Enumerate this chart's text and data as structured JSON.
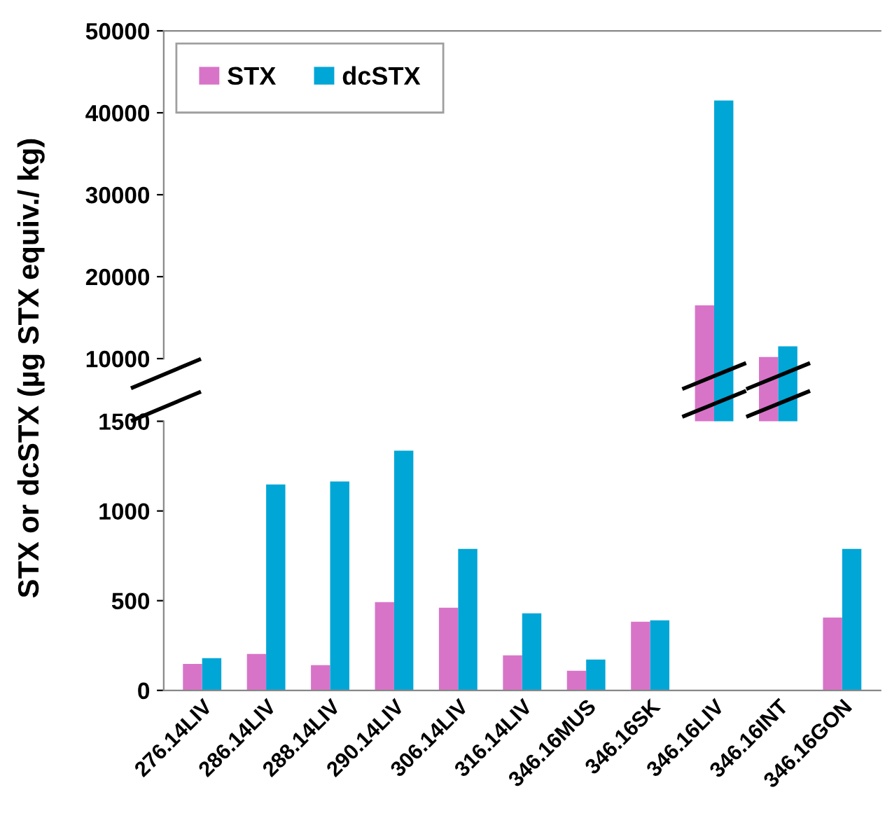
{
  "chart_data": [
    {
      "type": "bar",
      "ylabel": "STX or dcSTX (µg STX equiv./ kg)",
      "series": [
        {
          "name": "STX",
          "color": "#d874c8",
          "values": [
            null,
            null,
            null,
            null,
            null,
            null,
            null,
            null,
            16500,
            10200,
            null
          ]
        },
        {
          "name": "dcSTX",
          "color": "#00a6d6",
          "values": [
            null,
            null,
            null,
            null,
            null,
            null,
            null,
            null,
            41500,
            11500,
            null
          ]
        }
      ],
      "ylim": [
        10000,
        50000
      ],
      "yticks": [
        10000,
        20000,
        30000,
        40000,
        50000
      ],
      "tick_labels": "y",
      "legend": "top left",
      "grid": false
    },
    {
      "type": "bar",
      "categories": [
        "276.14LIV",
        "286.14LIV",
        "288.14LIV",
        "290.14LIV",
        "306.14LIV",
        "316.14LIV",
        "346.16MUS",
        "346.16SK",
        "346.16LIV",
        "346.16INT",
        "346.16GON"
      ],
      "series": [
        {
          "color": "#d874c8",
          "values": [
            148,
            203,
            141,
            492,
            461,
            195,
            109,
            383,
            null,
            null,
            406
          ]
        },
        {
          "color": "#00a6d6",
          "values": [
            180,
            1148,
            1164,
            1336,
            789,
            430,
            172,
            391,
            null,
            null,
            789
          ]
        }
      ],
      "ylim": [
        0,
        1500
      ],
      "yticks": [
        0,
        500,
        1000,
        1500
      ],
      "grid": false
    }
  ]
}
